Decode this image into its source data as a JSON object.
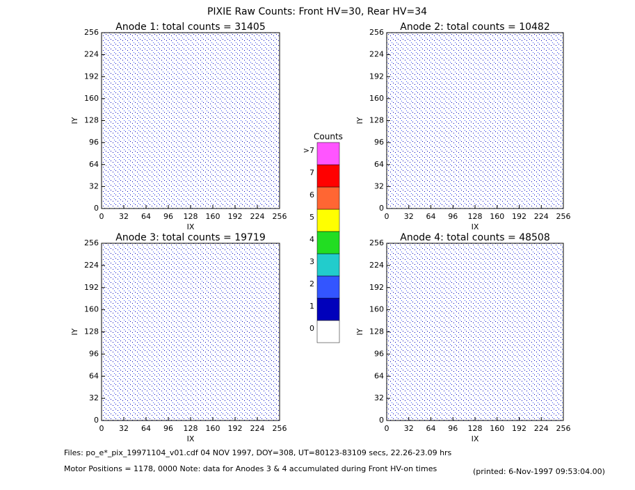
{
  "title": "PIXIE Raw Counts:  Front HV=30, Rear HV=34",
  "chart_data": [
    {
      "type": "heatmap",
      "title": "Anode 1: total counts = 31405",
      "xlabel": "IX",
      "ylabel": "IY",
      "xlim": [
        0,
        256
      ],
      "ylim": [
        0,
        256
      ],
      "xticks": [
        0,
        32,
        64,
        96,
        128,
        160,
        192,
        224,
        256
      ],
      "yticks": [
        0,
        32,
        64,
        96,
        128,
        160,
        192,
        224,
        256
      ]
    },
    {
      "type": "heatmap",
      "title": "Anode 2: total counts = 10482",
      "xlabel": "IX",
      "ylabel": "IY",
      "xlim": [
        0,
        256
      ],
      "ylim": [
        0,
        256
      ],
      "xticks": [
        0,
        32,
        64,
        96,
        128,
        160,
        192,
        224,
        256
      ],
      "yticks": [
        0,
        32,
        64,
        96,
        128,
        160,
        192,
        224,
        256
      ]
    },
    {
      "type": "heatmap",
      "title": "Anode 3: total counts = 19719",
      "xlabel": "IX",
      "ylabel": "IY",
      "xlim": [
        0,
        256
      ],
      "ylim": [
        0,
        256
      ],
      "xticks": [
        0,
        32,
        64,
        96,
        128,
        160,
        192,
        224,
        256
      ],
      "yticks": [
        0,
        32,
        64,
        96,
        128,
        160,
        192,
        224,
        256
      ]
    },
    {
      "type": "heatmap",
      "title": "Anode 4: total counts = 48508",
      "xlabel": "IX",
      "ylabel": "IY",
      "xlim": [
        0,
        256
      ],
      "ylim": [
        0,
        256
      ],
      "xticks": [
        0,
        32,
        64,
        96,
        128,
        160,
        192,
        224,
        256
      ],
      "yticks": [
        0,
        32,
        64,
        96,
        128,
        160,
        192,
        224,
        256
      ]
    }
  ],
  "colorbar": {
    "title": "Counts",
    "levels": [
      {
        "value": 0,
        "label": "0",
        "color": "#ffffff"
      },
      {
        "value": 1,
        "label": "1",
        "color": "#0000bb"
      },
      {
        "value": 2,
        "label": "2",
        "color": "#3355ff"
      },
      {
        "value": 3,
        "label": "3",
        "color": "#22cccc"
      },
      {
        "value": 4,
        "label": "4",
        "color": "#22dd22"
      },
      {
        "value": 5,
        "label": "5",
        "color": "#ffff00"
      },
      {
        "value": 6,
        "label": "6",
        "color": "#ff6633"
      },
      {
        "value": 7,
        "label": "7",
        "color": "#ff0000"
      },
      {
        "value": 8,
        "label": ">7",
        "color": "#ff55ff"
      }
    ]
  },
  "footer": {
    "files": "Files: po_e*_pix_19971104_v01.cdf    04 NOV 1997, DOY=308, UT=80123-83109 secs, 22.26-23.09 hrs",
    "motor": "Motor Positions = 1178, 0000   Note: data for Anodes 3 & 4 accumulated during Front HV-on times",
    "printed": "(printed:  6-Nov-1997 09:53:04.00)"
  }
}
